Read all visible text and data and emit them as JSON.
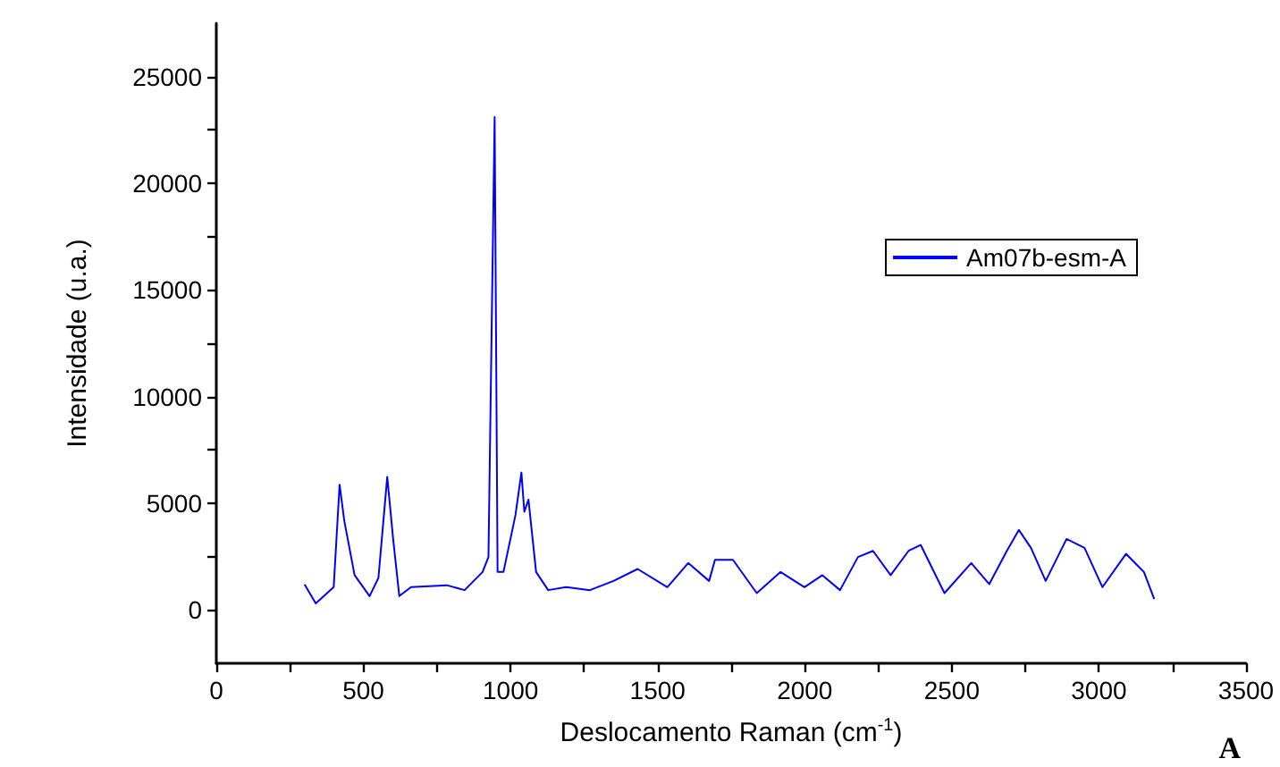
{
  "chart_data": {
    "type": "line",
    "xlabel": "Deslocamento Raman (cm$^{-1}$)",
    "ylabel": "Intensidade (u.a.)",
    "xlim": [
      0,
      3500
    ],
    "ylim": [
      -2500,
      27500
    ],
    "xticks": [
      0,
      {
        "value": 250,
        "label": null
      },
      500,
      {
        "value": 750,
        "label": null
      },
      1000,
      {
        "value": 1250,
        "label": null
      },
      1500,
      {
        "value": 1750,
        "label": null
      },
      2000,
      {
        "value": 2250,
        "label": null
      },
      2500,
      {
        "value": 2750,
        "label": null
      },
      3000,
      {
        "value": 3250,
        "label": null
      },
      3500
    ],
    "yticks": [
      0,
      {
        "value": 2500,
        "label": null
      },
      5000,
      {
        "value": 7500,
        "label": null
      },
      10000,
      {
        "value": 12500,
        "label": null
      },
      15000,
      {
        "value": 17500,
        "label": null
      },
      20000,
      {
        "value": 22500,
        "label": null
      },
      25000
    ],
    "legend": "right",
    "grid": false,
    "marker": "none",
    "line_style": "solid",
    "annotations": [
      "A"
    ],
    "series": [
      {
        "name": "Am07b-esm-A",
        "color": "#0000ff",
        "x": [
          300,
          338,
          399,
          419,
          435,
          470,
          521,
          551,
          581,
          601,
          622,
          662,
          784,
          844,
          905,
          925,
          946,
          956,
          976,
          1017,
          1037,
          1047,
          1061,
          1087,
          1128,
          1189,
          1270,
          1350,
          1432,
          1533,
          1604,
          1675,
          1695,
          1715,
          1756,
          1837,
          1918,
          1999,
          2060,
          2120,
          2181,
          2232,
          2292,
          2353,
          2394,
          2475,
          2566,
          2627,
          2687,
          2728,
          2769,
          2819,
          2890,
          2951,
          3012,
          3092,
          3153,
          3188
        ],
        "values": [
          1200,
          310,
          1070,
          5870,
          4180,
          1630,
          650,
          1500,
          6240,
          3330,
          650,
          1070,
          1160,
          930,
          1780,
          2480,
          23100,
          1780,
          1780,
          4460,
          6440,
          4600,
          5170,
          1780,
          930,
          1070,
          930,
          1360,
          1920,
          1070,
          2200,
          1360,
          2350,
          2350,
          2350,
          790,
          1780,
          1070,
          1630,
          930,
          2480,
          2770,
          1630,
          2770,
          3050,
          790,
          2200,
          1210,
          2770,
          3750,
          2910,
          1360,
          3330,
          2910,
          1070,
          2630,
          1780,
          510
        ]
      }
    ]
  }
}
